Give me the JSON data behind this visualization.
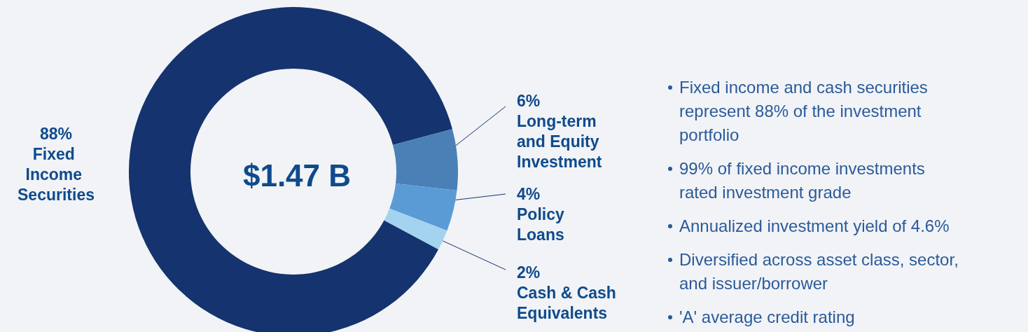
{
  "chart_data": {
    "type": "donut",
    "title": "$1.47 B",
    "categories": [
      "Fixed Income Securities",
      "Long-term and Equity Investment",
      "Policy Loans",
      "Cash & Cash Equivalents"
    ],
    "values": [
      88,
      6,
      4,
      2
    ],
    "colors": [
      "#15336e",
      "#4a80b5",
      "#5a9bd6",
      "#a3d3ef"
    ],
    "value_labels": [
      "88%",
      "6%",
      "4%",
      "2%"
    ],
    "legend": false,
    "annotations": [
      "Fixed income and cash securities represent 88% of the investment portfolio",
      "99% of fixed income investments rated investment grade",
      "Annualized investment yield of 4.6%",
      "Diversified across asset class, sector, and issuer/borrower",
      "'A' average credit rating"
    ]
  }
}
